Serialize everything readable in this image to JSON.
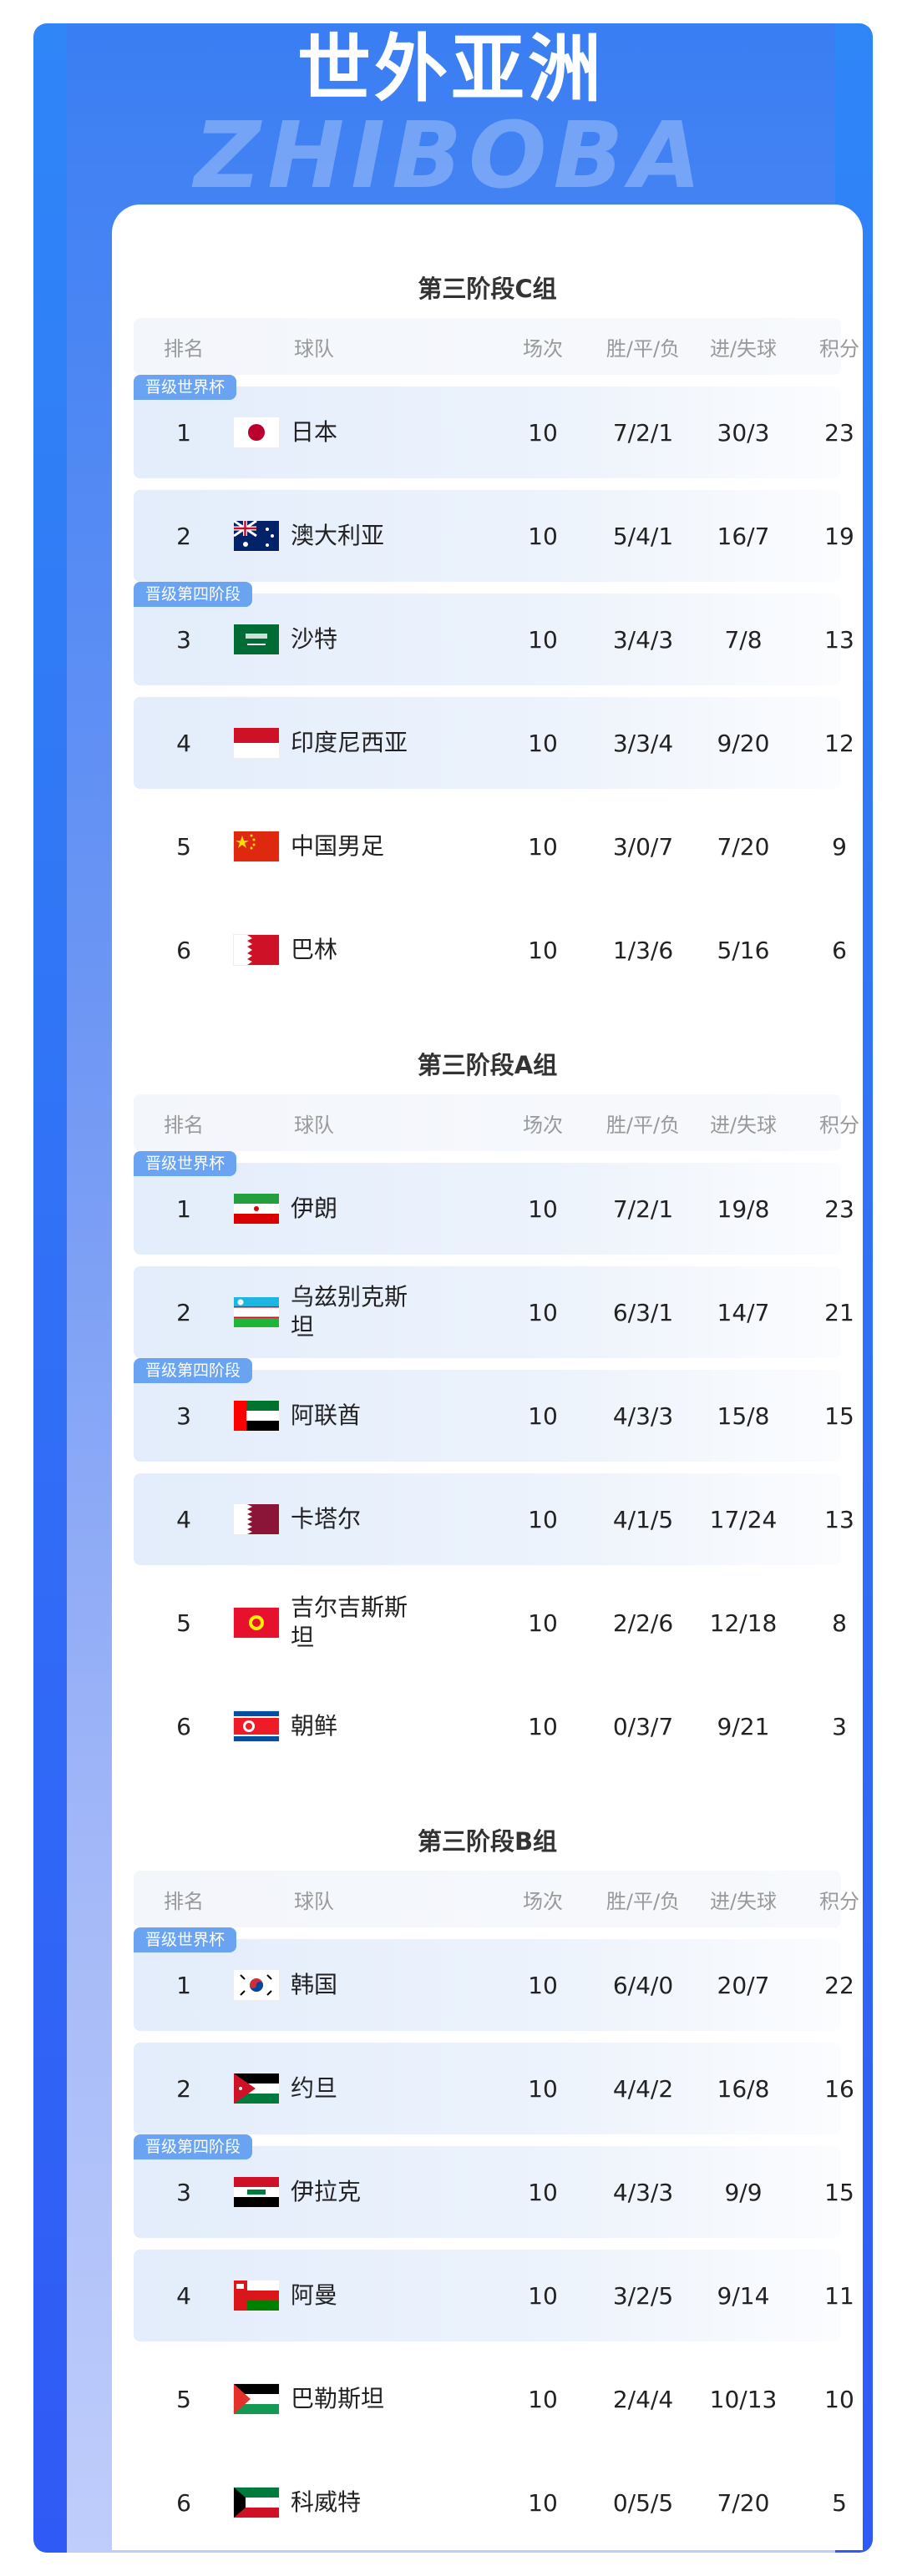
{
  "page": {
    "title": "世外亚洲",
    "watermark": "ZHIBOBA"
  },
  "colors": {
    "frame": "#3170f6",
    "badge": "#6aa3f2",
    "highlight_row": "#e3edfb"
  },
  "columns": {
    "rank": "排名",
    "team": "球队",
    "played": "场次",
    "wdl": "胜/平/负",
    "goals": "进/失球",
    "points": "积分"
  },
  "groups": [
    {
      "title": "第三阶段C组",
      "rows": [
        {
          "badge": "晋级世界杯",
          "rank": "1",
          "flag": "japan",
          "team": "日本",
          "played": "10",
          "wdl": "7/2/1",
          "goals": "30/3",
          "points": "23",
          "highlight": true
        },
        {
          "rank": "2",
          "flag": "australia",
          "team": "澳大利亚",
          "played": "10",
          "wdl": "5/4/1",
          "goals": "16/7",
          "points": "19",
          "highlight": true
        },
        {
          "badge": "晋级第四阶段",
          "rank": "3",
          "flag": "saudi-arabia",
          "team": "沙特",
          "played": "10",
          "wdl": "3/4/3",
          "goals": "7/8",
          "points": "13",
          "highlight": true
        },
        {
          "rank": "4",
          "flag": "indonesia",
          "team": "印度尼西亚",
          "played": "10",
          "wdl": "3/3/4",
          "goals": "9/20",
          "points": "12",
          "highlight": true
        },
        {
          "rank": "5",
          "flag": "china",
          "team": "中国男足",
          "played": "10",
          "wdl": "3/0/7",
          "goals": "7/20",
          "points": "9",
          "highlight": false
        },
        {
          "rank": "6",
          "flag": "bahrain",
          "team": "巴林",
          "played": "10",
          "wdl": "1/3/6",
          "goals": "5/16",
          "points": "6",
          "highlight": false
        }
      ]
    },
    {
      "title": "第三阶段A组",
      "rows": [
        {
          "badge": "晋级世界杯",
          "rank": "1",
          "flag": "iran",
          "team": "伊朗",
          "played": "10",
          "wdl": "7/2/1",
          "goals": "19/8",
          "points": "23",
          "highlight": true
        },
        {
          "rank": "2",
          "flag": "uzbekistan",
          "team": "乌兹别克斯坦",
          "played": "10",
          "wdl": "6/3/1",
          "goals": "14/7",
          "points": "21",
          "highlight": true
        },
        {
          "badge": "晋级第四阶段",
          "rank": "3",
          "flag": "uae",
          "team": "阿联酋",
          "played": "10",
          "wdl": "4/3/3",
          "goals": "15/8",
          "points": "15",
          "highlight": true
        },
        {
          "rank": "4",
          "flag": "qatar",
          "team": "卡塔尔",
          "played": "10",
          "wdl": "4/1/5",
          "goals": "17/24",
          "points": "13",
          "highlight": true
        },
        {
          "rank": "5",
          "flag": "kyrgyzstan",
          "team": "吉尔吉斯斯坦",
          "played": "10",
          "wdl": "2/2/6",
          "goals": "12/18",
          "points": "8",
          "highlight": false
        },
        {
          "rank": "6",
          "flag": "north-korea",
          "team": "朝鲜",
          "played": "10",
          "wdl": "0/3/7",
          "goals": "9/21",
          "points": "3",
          "highlight": false
        }
      ]
    },
    {
      "title": "第三阶段B组",
      "rows": [
        {
          "badge": "晋级世界杯",
          "rank": "1",
          "flag": "south-korea",
          "team": "韩国",
          "played": "10",
          "wdl": "6/4/0",
          "goals": "20/7",
          "points": "22",
          "highlight": true
        },
        {
          "rank": "2",
          "flag": "jordan",
          "team": "约旦",
          "played": "10",
          "wdl": "4/4/2",
          "goals": "16/8",
          "points": "16",
          "highlight": true
        },
        {
          "badge": "晋级第四阶段",
          "rank": "3",
          "flag": "iraq",
          "team": "伊拉克",
          "played": "10",
          "wdl": "4/3/3",
          "goals": "9/9",
          "points": "15",
          "highlight": true
        },
        {
          "rank": "4",
          "flag": "oman",
          "team": "阿曼",
          "played": "10",
          "wdl": "3/2/5",
          "goals": "9/14",
          "points": "11",
          "highlight": true
        },
        {
          "rank": "5",
          "flag": "palestine",
          "team": "巴勒斯坦",
          "played": "10",
          "wdl": "2/4/4",
          "goals": "10/13",
          "points": "10",
          "highlight": false
        },
        {
          "rank": "6",
          "flag": "kuwait",
          "team": "科威特",
          "played": "10",
          "wdl": "0/5/5",
          "goals": "7/20",
          "points": "5",
          "highlight": false
        }
      ]
    }
  ]
}
